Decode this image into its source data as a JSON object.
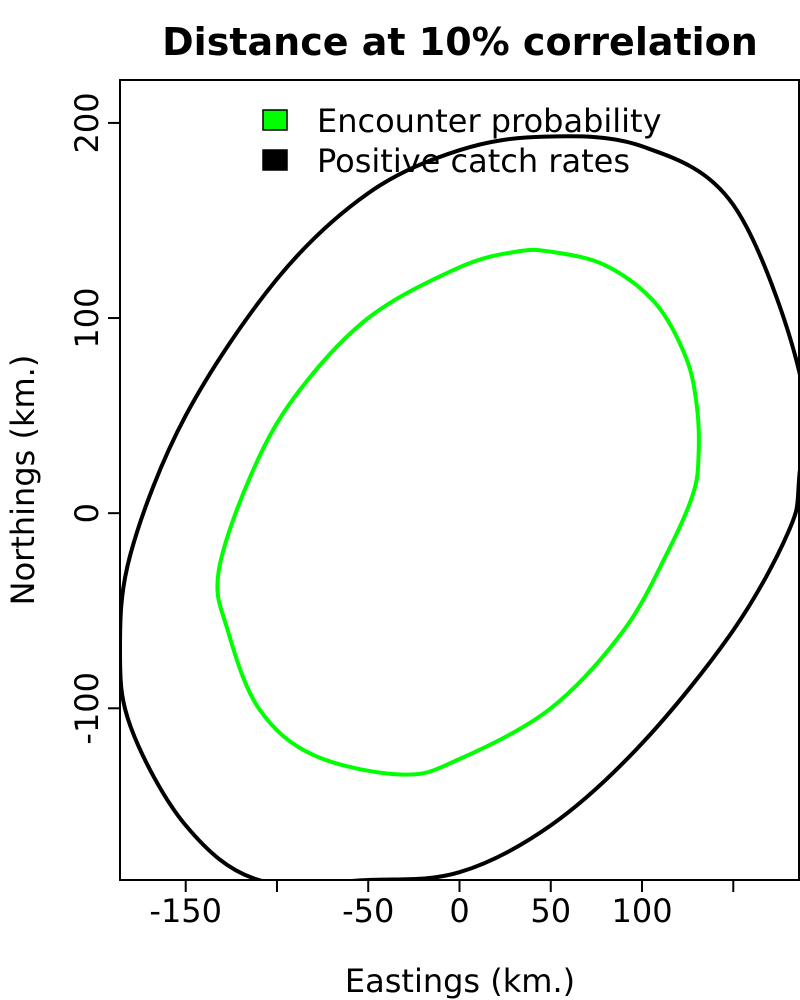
{
  "chart_data": {
    "type": "line",
    "title": "Distance at 10% correlation",
    "xlabel": "Eastings (km.)",
    "ylabel": "Northings (km.)",
    "xlim": [
      -186,
      186
    ],
    "ylim": [
      -188,
      222
    ],
    "x_ticks": [
      -150,
      -100,
      -50,
      0,
      50,
      100,
      150
    ],
    "x_tick_labels": [
      "-150",
      "",
      "-50",
      "0",
      "50",
      "100",
      ""
    ],
    "y_ticks": [
      -100,
      0,
      100,
      200
    ],
    "y_tick_labels": [
      "-100",
      "0",
      "100",
      "200"
    ],
    "grid": false,
    "legend_position": "top",
    "series": [
      {
        "name": "Encounter probability",
        "color": "#00ff00",
        "shape": "ellipse",
        "points": [
          [
            131,
            30
          ],
          [
            130,
            55
          ],
          [
            124,
            80
          ],
          [
            107,
            108
          ],
          [
            80,
            127
          ],
          [
            50,
            134
          ],
          [
            31,
            134
          ],
          [
            0,
            126
          ],
          [
            -50,
            100
          ],
          [
            -90,
            60
          ],
          [
            -114,
            20
          ],
          [
            -132,
            -30
          ],
          [
            -127,
            -60
          ],
          [
            -110,
            -100
          ],
          [
            -80,
            -124
          ],
          [
            -31,
            -134
          ],
          [
            0,
            -126
          ],
          [
            50,
            -100
          ],
          [
            90,
            -60
          ],
          [
            114,
            -20
          ],
          [
            128,
            10
          ]
        ]
      },
      {
        "name": "Positive catch rates",
        "color": "#000000",
        "shape": "ellipse",
        "points": [
          [
            186,
            73
          ],
          [
            150,
            158
          ],
          [
            100,
            188
          ],
          [
            47,
            193
          ],
          [
            0,
            186
          ],
          [
            -50,
            164
          ],
          [
            -100,
            120
          ],
          [
            -150,
            50
          ],
          [
            -180,
            -20
          ],
          [
            -186,
            -70
          ],
          [
            -180,
            -110
          ],
          [
            -150,
            -160
          ],
          [
            -110,
            -188
          ],
          [
            -50,
            -188
          ],
          [
            0,
            -184
          ],
          [
            50,
            -160
          ],
          [
            100,
            -118
          ],
          [
            150,
            -60
          ],
          [
            180,
            -10
          ],
          [
            186,
            17
          ]
        ]
      }
    ]
  }
}
